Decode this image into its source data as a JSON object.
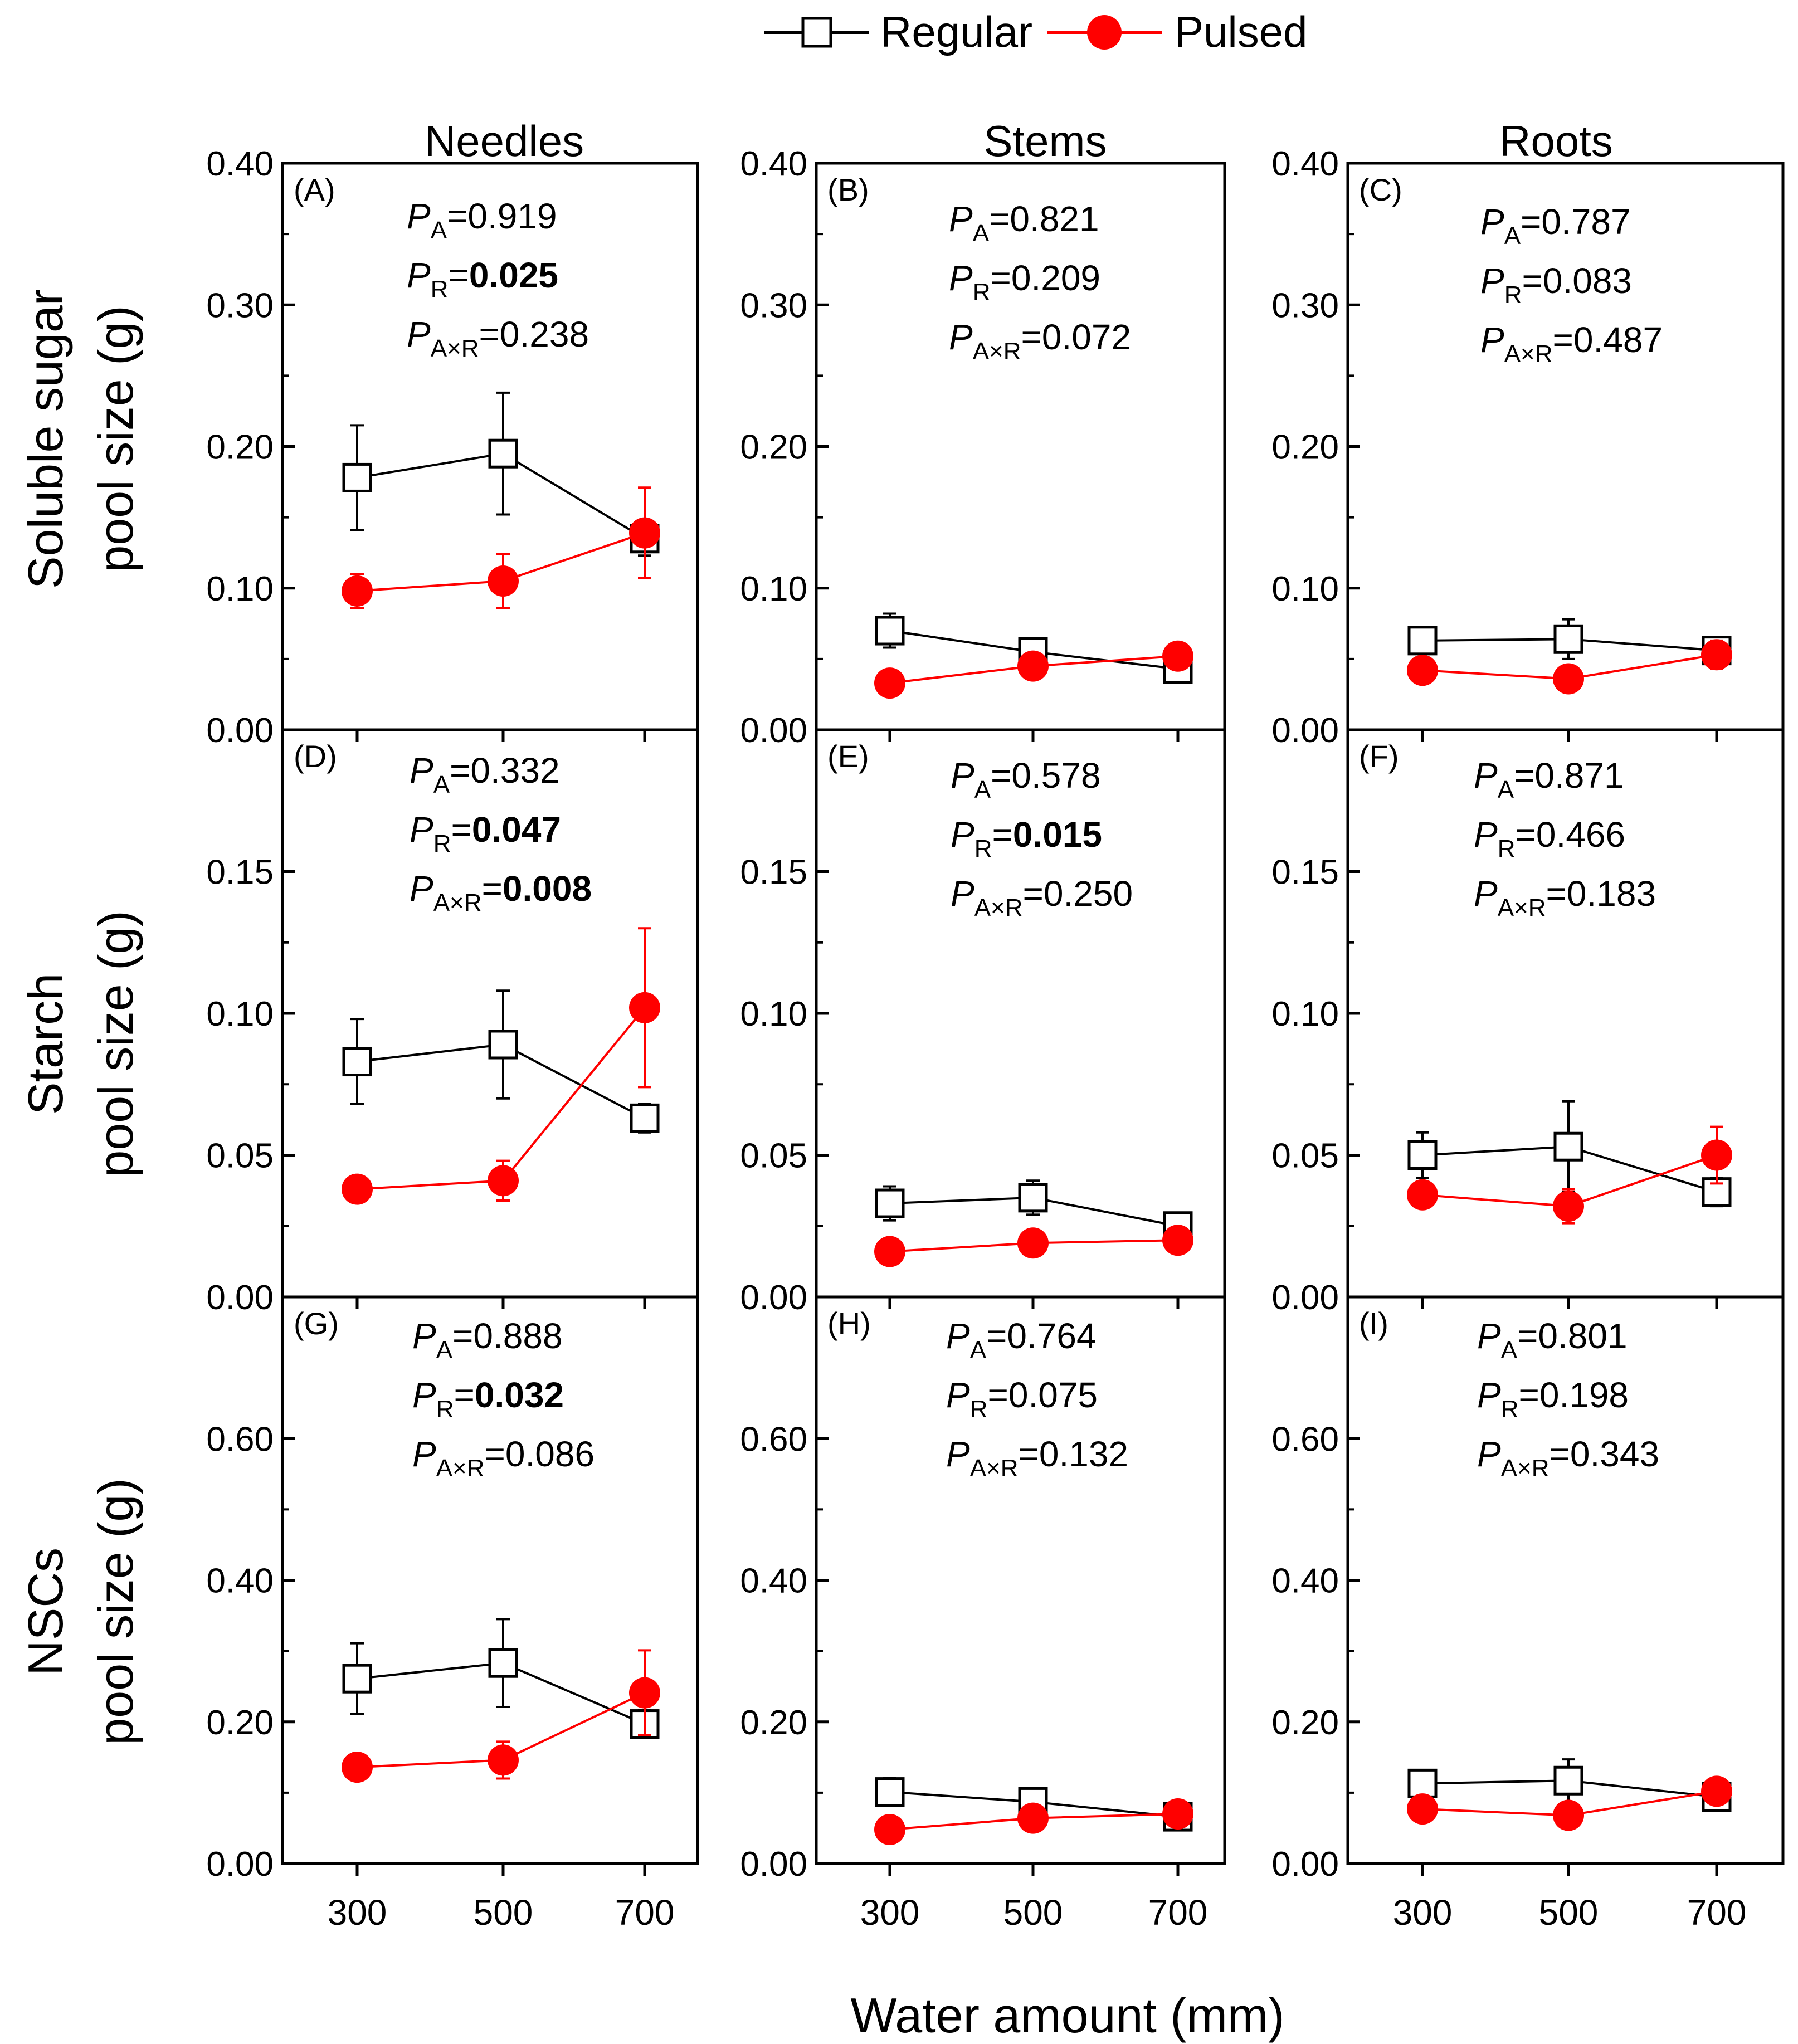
{
  "legend": {
    "regular_label": "Regular",
    "pulsed_label": "Pulsed"
  },
  "colors": {
    "regular": "#000000",
    "pulsed": "#ff0000"
  },
  "xlabel": "Water amount (mm)",
  "column_titles": [
    "Needles",
    "Stems",
    "Roots"
  ],
  "row_labels": [
    [
      "Soluble sugar",
      "pool size (g)"
    ],
    [
      "Starch",
      "pool size (g)"
    ],
    [
      "NSCs",
      "pool size (g)"
    ]
  ],
  "chart_data": [
    {
      "type": "line",
      "panel": "(A)",
      "organ": "Needles",
      "variable": "Soluble sugar",
      "categories": [
        300,
        500,
        700
      ],
      "ylim": [
        0,
        0.4
      ],
      "yticks": [
        0.0,
        0.1,
        0.2,
        0.3,
        0.4
      ],
      "ytick_labels": [
        "0.00",
        "0.10",
        "0.20",
        "0.30",
        "0.40"
      ],
      "series": [
        {
          "name": "Regular",
          "values": [
            0.178,
            0.195,
            0.135
          ],
          "errors": [
            0.037,
            0.043,
            0.012
          ]
        },
        {
          "name": "Pulsed",
          "values": [
            0.098,
            0.105,
            0.139
          ],
          "errors": [
            0.012,
            0.019,
            0.032
          ]
        }
      ],
      "stats": [
        {
          "sub": "A",
          "value": "0.919",
          "bold": false
        },
        {
          "sub": "R",
          "value": "0.025",
          "bold": true
        },
        {
          "sub": "A×R",
          "value": "0.238",
          "bold": false
        }
      ]
    },
    {
      "type": "line",
      "panel": "(B)",
      "organ": "Stems",
      "variable": "Soluble sugar",
      "categories": [
        300,
        500,
        700
      ],
      "ylim": [
        0,
        0.4
      ],
      "yticks": [
        0.0,
        0.1,
        0.2,
        0.3,
        0.4
      ],
      "ytick_labels": [
        "0.00",
        "0.10",
        "0.20",
        "0.30",
        "0.40"
      ],
      "series": [
        {
          "name": "Regular",
          "values": [
            0.07,
            0.055,
            0.043
          ],
          "errors": [
            0.012,
            0.004,
            0.008
          ]
        },
        {
          "name": "Pulsed",
          "values": [
            0.033,
            0.045,
            0.052
          ],
          "errors": [
            0.003,
            0.004,
            0.004
          ]
        }
      ],
      "stats": [
        {
          "sub": "A",
          "value": "0.821",
          "bold": false
        },
        {
          "sub": "R",
          "value": "0.209",
          "bold": false
        },
        {
          "sub": "A×R",
          "value": "0.072",
          "bold": false
        }
      ]
    },
    {
      "type": "line",
      "panel": "(C)",
      "organ": "Roots",
      "variable": "Soluble sugar",
      "categories": [
        300,
        500,
        700
      ],
      "ylim": [
        0,
        0.4
      ],
      "yticks": [
        0.0,
        0.1,
        0.2,
        0.3,
        0.4
      ],
      "ytick_labels": [
        "0.00",
        "0.10",
        "0.20",
        "0.30",
        "0.40"
      ],
      "series": [
        {
          "name": "Regular",
          "values": [
            0.063,
            0.064,
            0.056
          ],
          "errors": [
            0.005,
            0.014,
            0.004
          ]
        },
        {
          "name": "Pulsed",
          "values": [
            0.042,
            0.036,
            0.053
          ],
          "errors": [
            0.004,
            0.005,
            0.01
          ]
        }
      ],
      "stats": [
        {
          "sub": "A",
          "value": "0.787",
          "bold": false
        },
        {
          "sub": "R",
          "value": "0.083",
          "bold": false
        },
        {
          "sub": "A×R",
          "value": "0.487",
          "bold": false
        }
      ]
    },
    {
      "type": "line",
      "panel": "(D)",
      "organ": "Needles",
      "variable": "Starch",
      "categories": [
        300,
        500,
        700
      ],
      "ylim": [
        0,
        0.2
      ],
      "yticks": [
        0.0,
        0.05,
        0.1,
        0.15
      ],
      "ytick_labels": [
        "0.00",
        "0.05",
        "0.10",
        "0.15"
      ],
      "series": [
        {
          "name": "Regular",
          "values": [
            0.083,
            0.089,
            0.063
          ],
          "errors": [
            0.015,
            0.019,
            0.005
          ]
        },
        {
          "name": "Pulsed",
          "values": [
            0.038,
            0.041,
            0.102
          ],
          "errors": [
            0.003,
            0.007,
            0.028
          ]
        }
      ],
      "stats": [
        {
          "sub": "A",
          "value": "0.332",
          "bold": false
        },
        {
          "sub": "R",
          "value": "0.047",
          "bold": true
        },
        {
          "sub": "A×R",
          "value": "0.008",
          "bold": true
        }
      ]
    },
    {
      "type": "line",
      "panel": "(E)",
      "organ": "Stems",
      "variable": "Starch",
      "categories": [
        300,
        500,
        700
      ],
      "ylim": [
        0,
        0.2
      ],
      "yticks": [
        0.0,
        0.05,
        0.1,
        0.15
      ],
      "ytick_labels": [
        "0.00",
        "0.05",
        "0.10",
        "0.15"
      ],
      "series": [
        {
          "name": "Regular",
          "values": [
            0.033,
            0.035,
            0.025
          ],
          "errors": [
            0.006,
            0.006,
            0.004
          ]
        },
        {
          "name": "Pulsed",
          "values": [
            0.016,
            0.019,
            0.02
          ],
          "errors": [
            0.002,
            0.002,
            0.002
          ]
        }
      ],
      "stats": [
        {
          "sub": "A",
          "value": "0.578",
          "bold": false
        },
        {
          "sub": "R",
          "value": "0.015",
          "bold": true
        },
        {
          "sub": "A×R",
          "value": "0.250",
          "bold": false
        }
      ]
    },
    {
      "type": "line",
      "panel": "(F)",
      "organ": "Roots",
      "variable": "Starch",
      "categories": [
        300,
        500,
        700
      ],
      "ylim": [
        0,
        0.2
      ],
      "yticks": [
        0.0,
        0.05,
        0.1,
        0.15
      ],
      "ytick_labels": [
        "0.00",
        "0.05",
        "0.10",
        "0.15"
      ],
      "series": [
        {
          "name": "Regular",
          "values": [
            0.05,
            0.053,
            0.037
          ],
          "errors": [
            0.008,
            0.016,
            0.005
          ]
        },
        {
          "name": "Pulsed",
          "values": [
            0.036,
            0.032,
            0.05
          ],
          "errors": [
            0.004,
            0.006,
            0.01
          ]
        }
      ],
      "stats": [
        {
          "sub": "A",
          "value": "0.871",
          "bold": false
        },
        {
          "sub": "R",
          "value": "0.466",
          "bold": false
        },
        {
          "sub": "A×R",
          "value": "0.183",
          "bold": false
        }
      ]
    },
    {
      "type": "line",
      "panel": "(G)",
      "organ": "Needles",
      "variable": "NSCs",
      "categories": [
        300,
        500,
        700
      ],
      "ylim": [
        0,
        0.8
      ],
      "yticks": [
        0.0,
        0.2,
        0.4,
        0.6
      ],
      "ytick_labels": [
        "0.00",
        "0.20",
        "0.40",
        "0.60"
      ],
      "series": [
        {
          "name": "Regular",
          "values": [
            0.261,
            0.283,
            0.197
          ],
          "errors": [
            0.05,
            0.062,
            0.02
          ]
        },
        {
          "name": "Pulsed",
          "values": [
            0.136,
            0.146,
            0.241
          ],
          "errors": [
            0.01,
            0.026,
            0.06
          ]
        }
      ],
      "stats": [
        {
          "sub": "A",
          "value": "0.888",
          "bold": false
        },
        {
          "sub": "R",
          "value": "0.032",
          "bold": true
        },
        {
          "sub": "A×R",
          "value": "0.086",
          "bold": false
        }
      ]
    },
    {
      "type": "line",
      "panel": "(H)",
      "organ": "Stems",
      "variable": "NSCs",
      "categories": [
        300,
        500,
        700
      ],
      "ylim": [
        0,
        0.8
      ],
      "yticks": [
        0.0,
        0.2,
        0.4,
        0.6
      ],
      "ytick_labels": [
        "0.00",
        "0.20",
        "0.40",
        "0.60"
      ],
      "series": [
        {
          "name": "Regular",
          "values": [
            0.101,
            0.087,
            0.066
          ],
          "errors": [
            0.02,
            0.018,
            0.01
          ]
        },
        {
          "name": "Pulsed",
          "values": [
            0.048,
            0.064,
            0.07
          ],
          "errors": [
            0.004,
            0.005,
            0.005
          ]
        }
      ],
      "stats": [
        {
          "sub": "A",
          "value": "0.764",
          "bold": false
        },
        {
          "sub": "R",
          "value": "0.075",
          "bold": false
        },
        {
          "sub": "A×R",
          "value": "0.132",
          "bold": false
        }
      ]
    },
    {
      "type": "line",
      "panel": "(I)",
      "organ": "Roots",
      "variable": "NSCs",
      "categories": [
        300,
        500,
        700
      ],
      "ylim": [
        0,
        0.8
      ],
      "yticks": [
        0.0,
        0.2,
        0.4,
        0.6
      ],
      "ytick_labels": [
        "0.00",
        "0.20",
        "0.40",
        "0.60"
      ],
      "series": [
        {
          "name": "Regular",
          "values": [
            0.113,
            0.117,
            0.094
          ],
          "errors": [
            0.008,
            0.03,
            0.008
          ]
        },
        {
          "name": "Pulsed",
          "values": [
            0.077,
            0.068,
            0.102
          ],
          "errors": [
            0.006,
            0.008,
            0.008
          ]
        }
      ],
      "stats": [
        {
          "sub": "A",
          "value": "0.801",
          "bold": false
        },
        {
          "sub": "R",
          "value": "0.198",
          "bold": false
        },
        {
          "sub": "A×R",
          "value": "0.343",
          "bold": false
        }
      ]
    }
  ]
}
